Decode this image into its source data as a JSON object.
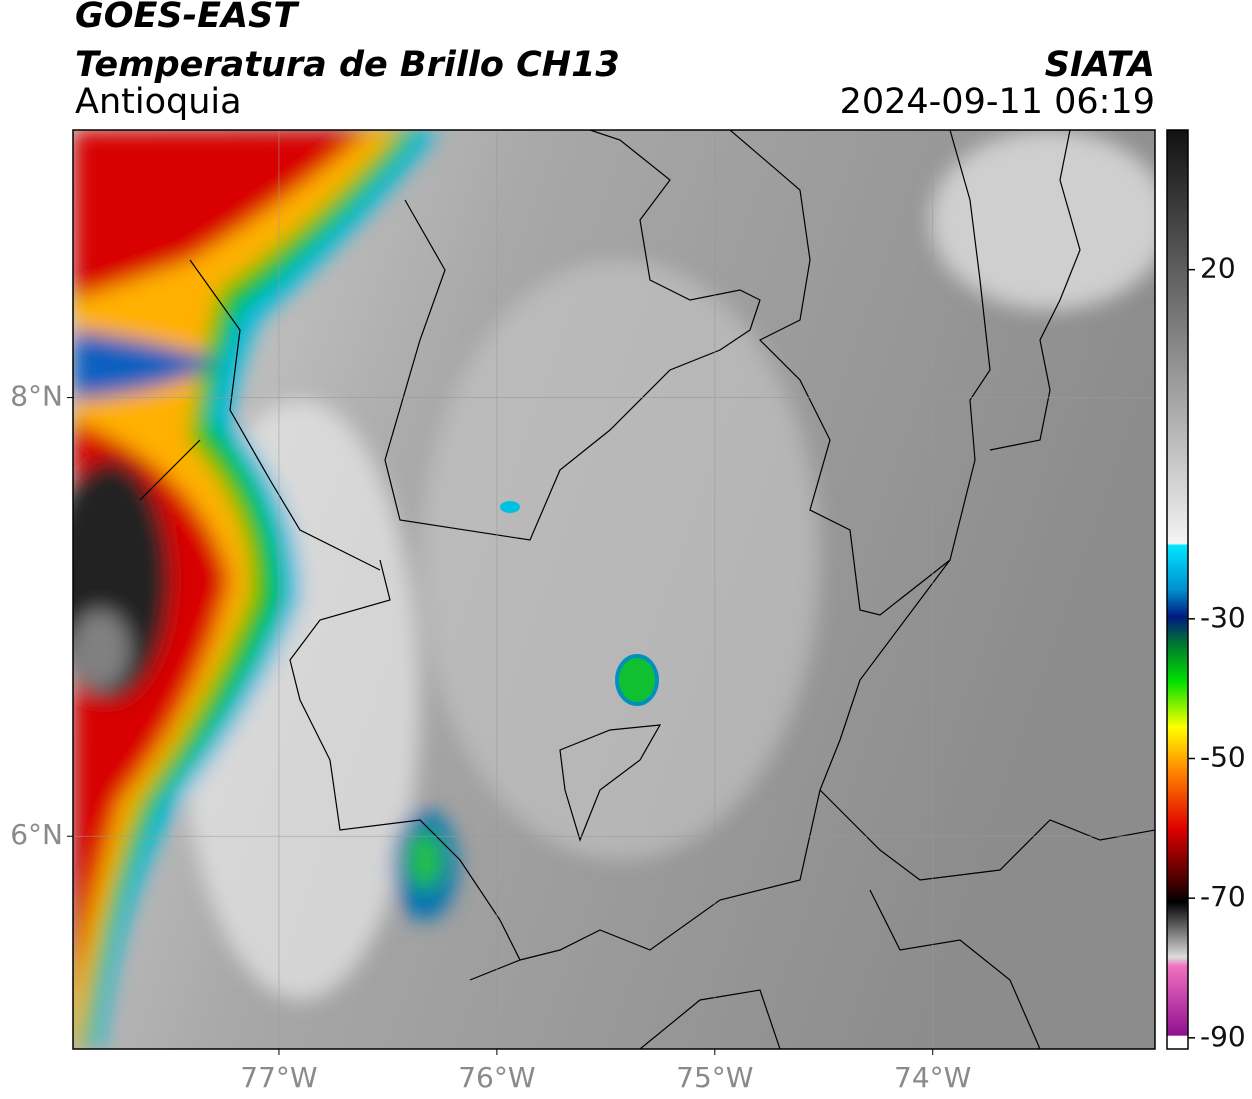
{
  "map": {
    "title": "GOES-EAST",
    "subtitle": "Temperatura de Brillo CH13",
    "region": "Antioquia",
    "source": "SIATA",
    "datetime": "2024-09-11 06:19",
    "xlim": [
      -77.945,
      -72.98
    ],
    "ylim": [
      5.03,
      9.22
    ],
    "xticks": [
      {
        "value": -77,
        "label": "77°W"
      },
      {
        "value": -76,
        "label": "76°W"
      },
      {
        "value": -75,
        "label": "75°W"
      },
      {
        "value": -74,
        "label": "74°W"
      }
    ],
    "yticks": [
      {
        "value": 8,
        "label": "8°N"
      },
      {
        "value": 6,
        "label": "6°N"
      }
    ],
    "colorbar": {
      "lim": [
        -91.6,
        40
      ],
      "ticks": [
        20,
        -30,
        -50,
        -70,
        -90
      ]
    }
  }
}
